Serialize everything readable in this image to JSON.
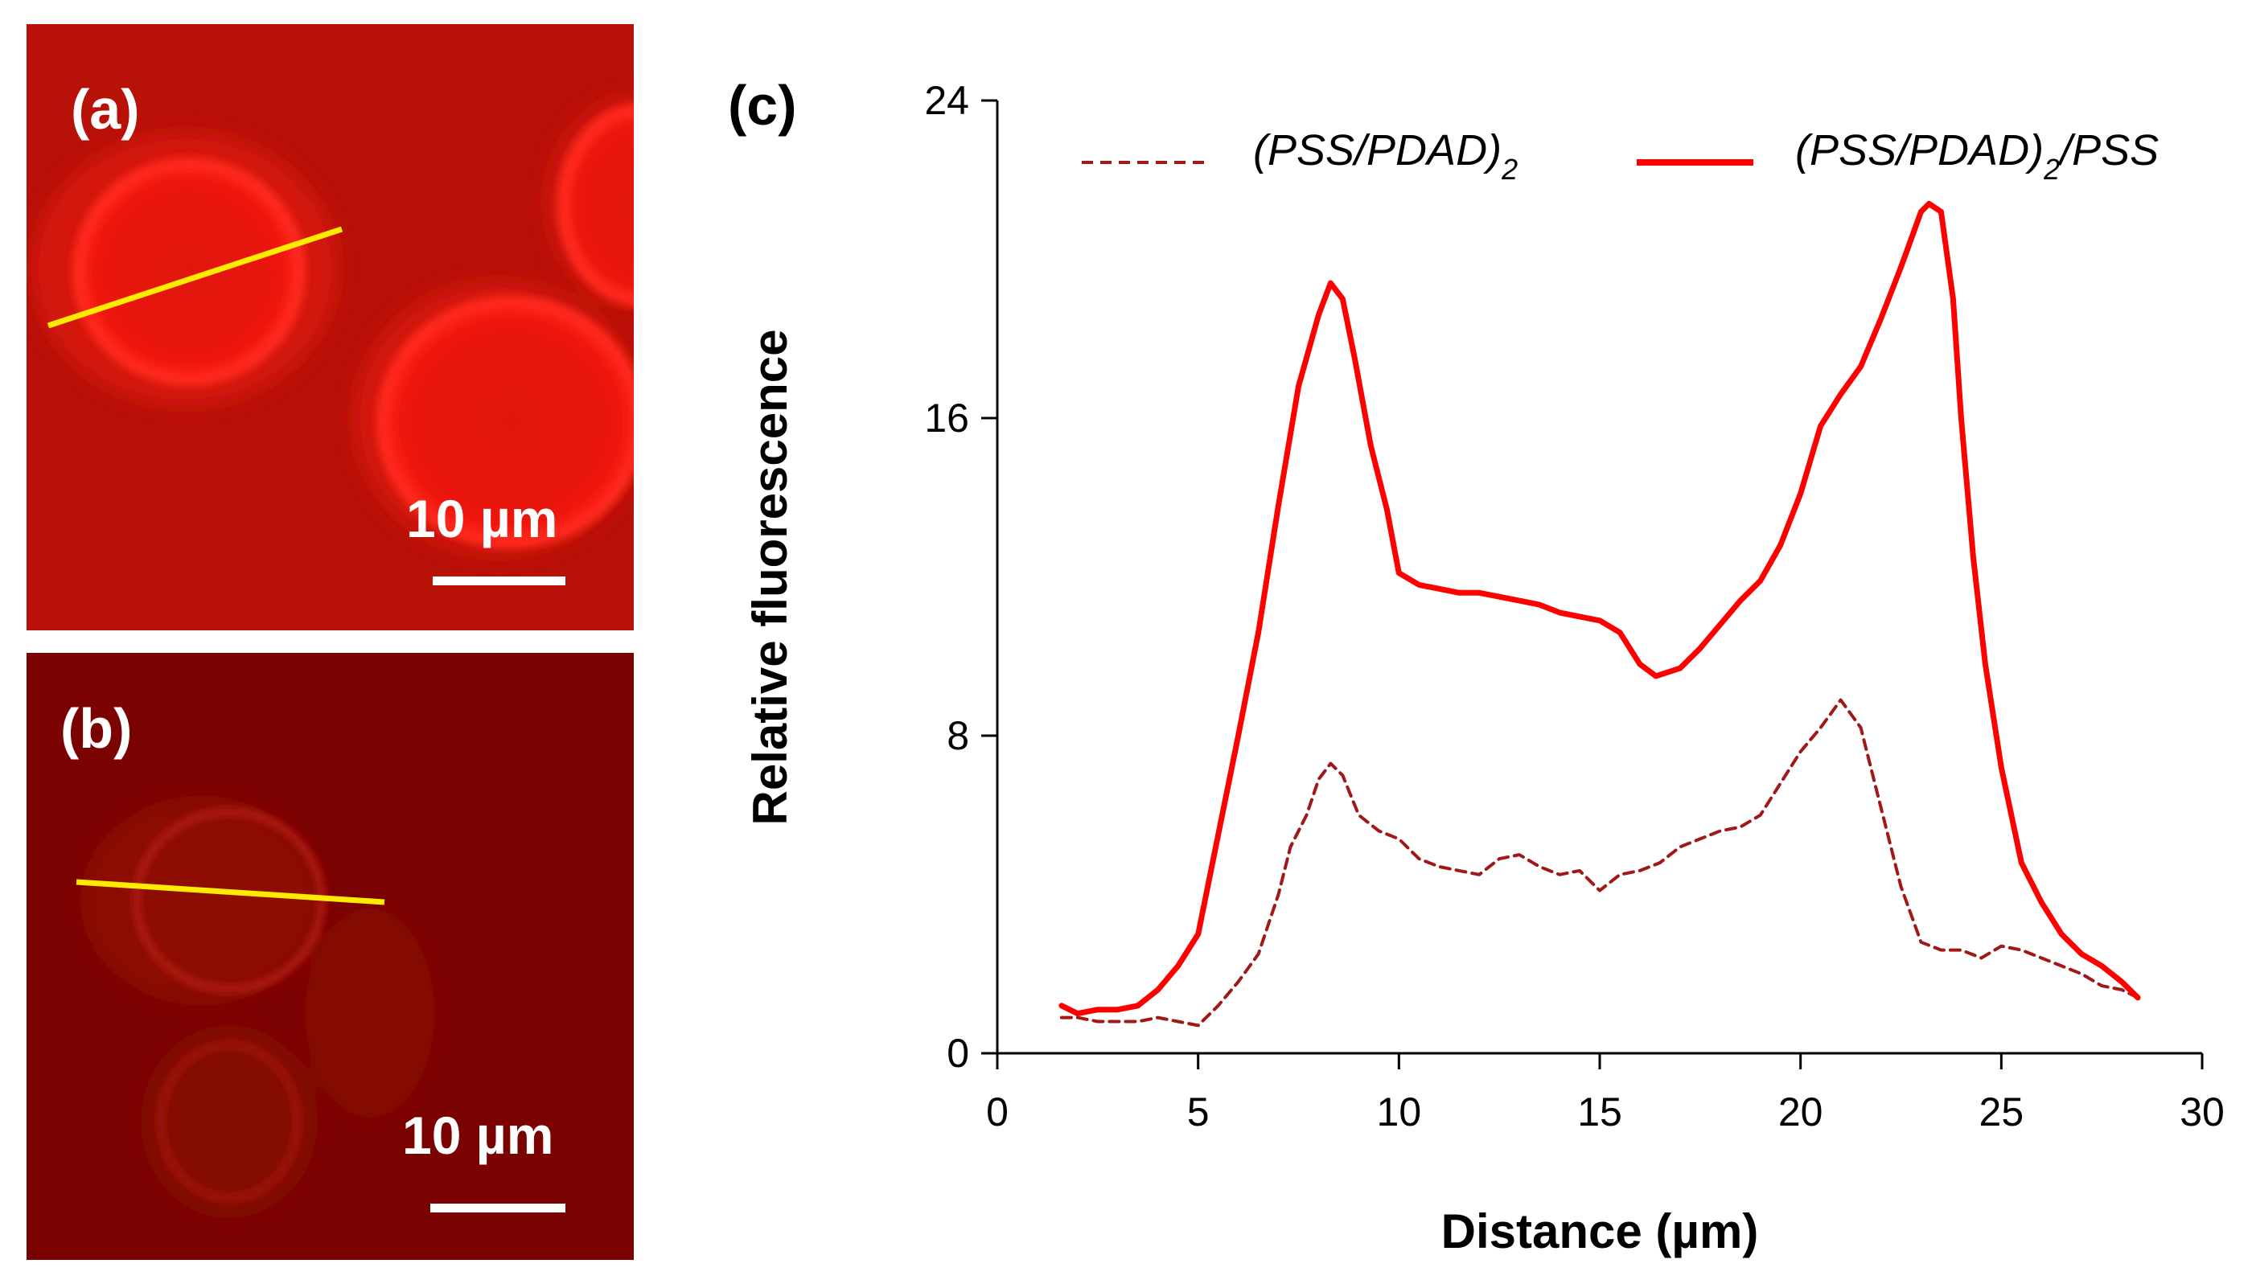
{
  "panels": {
    "a": {
      "label": "(a)",
      "scale_bar": "10 µm"
    },
    "b": {
      "label": "(b)",
      "scale_bar": "10 µm"
    },
    "c": {
      "label": "(c)"
    }
  },
  "colors": {
    "image_a_bg": "#b81108",
    "image_b_bg": "#7a0200",
    "cell_a": "#ff1a12",
    "cell_b": "#b31a12",
    "line_profile": "#ffeb00",
    "series_solid": "#ff0000",
    "series_dashed": "#a11818"
  },
  "legend": {
    "dashed": {
      "main": "(PSS/PDAD)",
      "sub": "2",
      "suffix": ""
    },
    "solid": {
      "main": "(PSS/PDAD)",
      "sub": "2",
      "suffix": "/PSS"
    }
  },
  "chart_data": {
    "type": "line",
    "title": "",
    "xlabel": "Distance (µm)",
    "ylabel": "Relative fluorescence",
    "xlim": [
      0,
      30
    ],
    "ylim": [
      0,
      24
    ],
    "xticks": [
      0,
      5,
      10,
      15,
      20,
      25,
      30
    ],
    "yticks": [
      0,
      8,
      16,
      24
    ],
    "legend_position": "top",
    "series": [
      {
        "name": "(PSS/PDAD)2",
        "style": "dashed",
        "x": [
          1.6,
          2.0,
          2.5,
          3.0,
          3.5,
          4.0,
          4.5,
          5.0,
          5.5,
          6.0,
          6.5,
          7.0,
          7.3,
          7.7,
          8.0,
          8.3,
          8.6,
          9.0,
          9.5,
          10.0,
          10.5,
          11.0,
          11.5,
          12.0,
          12.5,
          13.0,
          13.5,
          14.0,
          14.5,
          15.0,
          15.5,
          16.0,
          16.5,
          17.0,
          17.5,
          18.0,
          18.5,
          19.0,
          19.5,
          20.0,
          20.5,
          21.0,
          21.5,
          22.0,
          22.5,
          23.0,
          23.5,
          24.0,
          24.5,
          25.0,
          25.5,
          26.0,
          26.5,
          27.0,
          27.5,
          28.0,
          28.4
        ],
        "values": [
          0.9,
          0.9,
          0.8,
          0.8,
          0.8,
          0.9,
          0.8,
          0.7,
          1.2,
          1.8,
          2.5,
          4.0,
          5.2,
          6.0,
          6.9,
          7.3,
          7.0,
          6.0,
          5.6,
          5.4,
          4.9,
          4.7,
          4.6,
          4.5,
          4.9,
          5.0,
          4.7,
          4.5,
          4.6,
          4.1,
          4.5,
          4.6,
          4.8,
          5.2,
          5.4,
          5.6,
          5.7,
          6.0,
          6.8,
          7.6,
          8.2,
          8.9,
          8.2,
          6.2,
          4.2,
          2.8,
          2.6,
          2.6,
          2.4,
          2.7,
          2.6,
          2.4,
          2.2,
          2.0,
          1.7,
          1.6,
          1.4
        ]
      },
      {
        "name": "(PSS/PDAD)2/PSS",
        "style": "solid",
        "x": [
          1.6,
          2.0,
          2.5,
          3.0,
          3.5,
          4.0,
          4.5,
          5.0,
          5.5,
          6.0,
          6.5,
          7.0,
          7.5,
          8.0,
          8.3,
          8.6,
          8.9,
          9.3,
          9.7,
          10.0,
          10.5,
          11.0,
          11.5,
          12.0,
          12.5,
          13.0,
          13.5,
          14.0,
          14.5,
          15.0,
          15.5,
          16.0,
          16.4,
          17.0,
          17.5,
          18.0,
          18.5,
          19.0,
          19.5,
          20.0,
          20.5,
          21.0,
          21.5,
          22.0,
          22.5,
          23.0,
          23.2,
          23.5,
          23.8,
          24.0,
          24.3,
          24.6,
          25.0,
          25.5,
          26.0,
          26.5,
          27.0,
          27.5,
          28.0,
          28.4
        ],
        "values": [
          1.2,
          1.0,
          1.1,
          1.1,
          1.2,
          1.6,
          2.2,
          3.0,
          5.5,
          8.0,
          10.6,
          13.8,
          16.8,
          18.6,
          19.4,
          19.0,
          17.5,
          15.3,
          13.7,
          12.1,
          11.8,
          11.7,
          11.6,
          11.6,
          11.5,
          11.4,
          11.3,
          11.1,
          11.0,
          10.9,
          10.6,
          9.8,
          9.5,
          9.7,
          10.2,
          10.8,
          11.4,
          11.9,
          12.8,
          14.1,
          15.8,
          16.6,
          17.3,
          18.5,
          19.8,
          21.2,
          21.4,
          21.2,
          19.0,
          16.0,
          12.5,
          9.8,
          7.2,
          4.8,
          3.8,
          3.0,
          2.5,
          2.2,
          1.8,
          1.4
        ]
      }
    ]
  }
}
